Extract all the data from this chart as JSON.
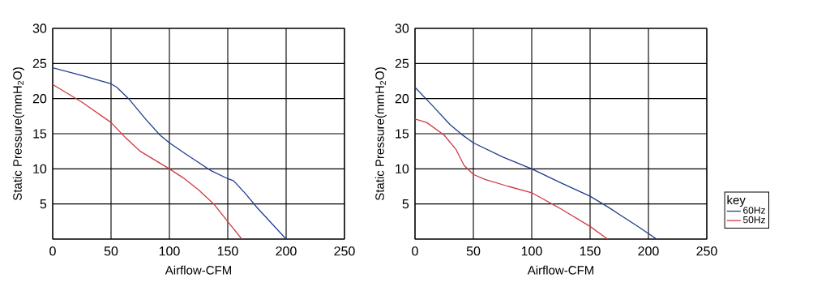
{
  "chart_data": [
    {
      "type": "line",
      "xlabel": "Airflow-CFM",
      "ylabel": "Static Pressure(mmH$_{2}$O)",
      "xlim": [
        0,
        250
      ],
      "ylim": [
        0,
        30
      ],
      "xticks": [
        0,
        50,
        100,
        150,
        200,
        250
      ],
      "yticks": [
        {
          "value": 0,
          "label": null
        },
        5,
        10,
        15,
        20,
        25,
        30
      ],
      "grid": true,
      "legend": false,
      "series": [
        {
          "color": "#1f3d8c",
          "x": [
            0,
            25,
            50,
            55,
            65,
            80,
            92,
            100,
            115,
            135,
            150,
            155,
            165,
            175,
            200
          ],
          "values": [
            24.4,
            23.3,
            22.1,
            21.6,
            20,
            17,
            14.8,
            13.7,
            12,
            9.8,
            8.6,
            8.3,
            6.5,
            4.5,
            0
          ]
        },
        {
          "color": "#d03a44",
          "x": [
            0,
            25,
            50,
            62,
            75,
            100,
            112,
            125,
            138,
            150,
            162
          ],
          "values": [
            22,
            19.5,
            16.6,
            14.5,
            12.5,
            10,
            8.7,
            7,
            5,
            2.5,
            0
          ]
        }
      ]
    },
    {
      "type": "line",
      "xlabel": "Airflow-CFM",
      "ylabel": "Static Pressure(mmH$_{2}$O)",
      "xlim": [
        0,
        250
      ],
      "ylim": [
        0,
        30
      ],
      "xticks": [
        0,
        50,
        100,
        150,
        200,
        250
      ],
      "yticks": [
        {
          "value": 0,
          "label": null
        },
        5,
        10,
        15,
        20,
        25,
        30
      ],
      "grid": true,
      "legend": "bottom right",
      "legend_title": "key",
      "series": [
        {
          "name": "60Hz",
          "color": "#1f3d8c",
          "x": [
            0,
            15,
            30,
            40,
            50,
            75,
            100,
            125,
            150,
            165,
            190,
            207
          ],
          "values": [
            21.6,
            19,
            16.3,
            14.9,
            13.7,
            11.7,
            10,
            8,
            6.1,
            4.6,
            1.9,
            0
          ]
        },
        {
          "name": "50Hz",
          "color": "#d03a44",
          "x": [
            0,
            10,
            25,
            35,
            42,
            50,
            60,
            80,
            100,
            125,
            150,
            165
          ],
          "values": [
            17.1,
            16.6,
            14.8,
            12.8,
            10.5,
            9.2,
            8.5,
            7.5,
            6.6,
            4.3,
            1.8,
            0
          ]
        }
      ]
    }
  ]
}
